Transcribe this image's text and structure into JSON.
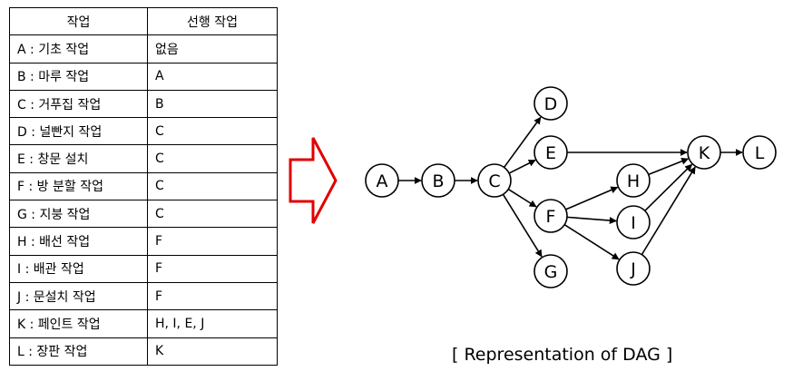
{
  "table": {
    "headers": [
      "작업",
      "선행 작업"
    ],
    "rows": [
      [
        "A : 기초 작업",
        "없음"
      ],
      [
        "B : 마루 작업",
        "A"
      ],
      [
        "C : 거푸집 작업",
        "B"
      ],
      [
        "D : 널빤지 작업",
        "C"
      ],
      [
        "E : 창문 설치",
        "C"
      ],
      [
        "F : 방 분할 작업",
        "C"
      ],
      [
        "G : 지붕 작업",
        "C"
      ],
      [
        "H : 배선 작업",
        "F"
      ],
      [
        "I : 배관 작업",
        "F"
      ],
      [
        "J : 문설치 작업",
        "F"
      ],
      [
        "K : 페인트 작업",
        "H, I, E, J"
      ],
      [
        "L : 장판 작업",
        "K"
      ]
    ]
  },
  "diagram": {
    "nodes": [
      "A",
      "B",
      "C",
      "D",
      "E",
      "F",
      "G",
      "H",
      "I",
      "J",
      "K",
      "L"
    ],
    "edges": [
      [
        "A",
        "B"
      ],
      [
        "B",
        "C"
      ],
      [
        "C",
        "D"
      ],
      [
        "C",
        "E"
      ],
      [
        "C",
        "F"
      ],
      [
        "C",
        "G"
      ],
      [
        "E",
        "K"
      ],
      [
        "F",
        "H"
      ],
      [
        "F",
        "I"
      ],
      [
        "F",
        "J"
      ],
      [
        "H",
        "K"
      ],
      [
        "I",
        "K"
      ],
      [
        "J",
        "K"
      ],
      [
        "K",
        "L"
      ]
    ],
    "arrow_color": "#e00000",
    "caption": "[ Representation of DAG ]"
  }
}
